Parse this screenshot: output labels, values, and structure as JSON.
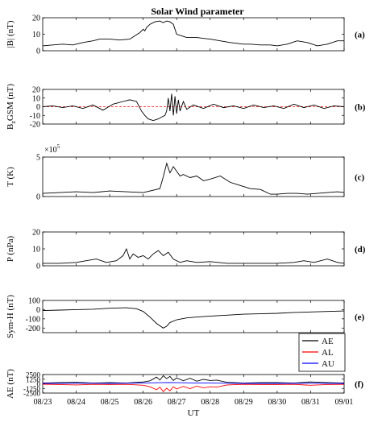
{
  "figure": {
    "title": "Solar Wind parameter"
  },
  "chart_data": [
    {
      "id": "a",
      "type": "line",
      "panel_label": "(a)",
      "ylabel": "|B| (nT)",
      "ylim": [
        0,
        20
      ],
      "yticks": [
        0,
        10,
        20
      ],
      "series": [
        {
          "color": "#000000",
          "x": [
            0,
            0.3,
            0.6,
            0.9,
            1.2,
            1.5,
            1.7,
            2.0,
            2.3,
            2.6,
            2.75,
            2.9,
            3.0,
            3.05,
            3.1,
            3.2,
            3.35,
            3.5,
            3.6,
            3.7,
            3.8,
            3.9,
            4.0,
            4.3,
            4.6,
            5.0,
            5.3,
            5.6,
            5.8,
            6.0,
            6.2,
            6.5,
            6.8,
            7.0,
            7.3,
            7.6,
            7.9,
            8.2,
            8.5,
            8.8,
            9.0
          ],
          "y": [
            3,
            3.5,
            4,
            3.5,
            5,
            6,
            7,
            7,
            6.5,
            7,
            9,
            11,
            13,
            12,
            14,
            16,
            17.5,
            18,
            17,
            18,
            17.5,
            16,
            10,
            8,
            8,
            7,
            6,
            5,
            4.5,
            4,
            4,
            3.5,
            3.5,
            3,
            4,
            6,
            5,
            3,
            4,
            6,
            6
          ]
        }
      ]
    },
    {
      "id": "b",
      "type": "line",
      "panel_label": "(b)",
      "ylabel": "Bz GSM (nT)",
      "ylim": [
        -20,
        20
      ],
      "yticks": [
        -20,
        -10,
        0,
        10,
        20
      ],
      "hline": 0,
      "series": [
        {
          "color": "#000000",
          "x": [
            0,
            0.3,
            0.6,
            0.9,
            1.2,
            1.5,
            1.8,
            2.1,
            2.4,
            2.6,
            2.8,
            2.95,
            3.05,
            3.15,
            3.3,
            3.45,
            3.55,
            3.65,
            3.7,
            3.75,
            3.8,
            3.85,
            3.9,
            3.95,
            4.0,
            4.05,
            4.1,
            4.2,
            4.3,
            4.5,
            4.8,
            5.1,
            5.4,
            5.7,
            6.0,
            6.3,
            6.6,
            6.9,
            7.2,
            7.5,
            7.8,
            8.1,
            8.4,
            8.7,
            9.0
          ],
          "y": [
            0,
            1,
            -1,
            1,
            -2,
            2,
            -4,
            3,
            6,
            8,
            6,
            -5,
            -10,
            -14,
            -16,
            -14,
            -12,
            -10,
            -5,
            10,
            -5,
            15,
            -10,
            12,
            -8,
            8,
            -5,
            6,
            -3,
            2,
            -2,
            3,
            -1,
            1,
            -2,
            2,
            -1,
            1,
            -2,
            3,
            -1,
            2,
            -2,
            1,
            0
          ]
        }
      ]
    },
    {
      "id": "c",
      "type": "line",
      "panel_label": "(c)",
      "ylabel": "T (K)",
      "ylim": [
        0,
        5
      ],
      "yticks": [
        0,
        5
      ],
      "multiplier": "×10",
      "multiplier_exp": "5",
      "series": [
        {
          "color": "#000000",
          "x": [
            0,
            0.5,
            1.0,
            1.5,
            2.0,
            2.5,
            3.0,
            3.5,
            3.6,
            3.7,
            3.8,
            3.9,
            4.0,
            4.1,
            4.2,
            4.4,
            4.6,
            4.8,
            5.0,
            5.3,
            5.6,
            5.9,
            6.2,
            6.5,
            6.8,
            7.0,
            7.3,
            7.6,
            7.9,
            8.2,
            8.5,
            8.8,
            9.0
          ],
          "y": [
            0.4,
            0.5,
            0.6,
            0.5,
            0.7,
            0.6,
            0.5,
            1.0,
            2.5,
            4.2,
            3.0,
            3.8,
            3.2,
            2.6,
            2.8,
            2.4,
            2.6,
            2.0,
            2.2,
            2.6,
            1.8,
            1.4,
            1.0,
            0.9,
            0.3,
            0.3,
            0.4,
            0.4,
            0.3,
            0.4,
            0.5,
            0.6,
            0.5
          ]
        }
      ]
    },
    {
      "id": "d",
      "type": "line",
      "panel_label": "(d)",
      "ylabel": "P (nPa)",
      "ylim": [
        0,
        20
      ],
      "yticks": [
        0,
        10,
        20
      ],
      "series": [
        {
          "color": "#000000",
          "x": [
            0,
            0.5,
            1.0,
            1.3,
            1.6,
            1.9,
            2.2,
            2.4,
            2.5,
            2.6,
            2.7,
            2.85,
            3.0,
            3.15,
            3.3,
            3.45,
            3.6,
            3.75,
            3.9,
            4.1,
            4.3,
            4.6,
            5.0,
            5.5,
            6.0,
            6.5,
            7.0,
            7.5,
            7.8,
            8.1,
            8.5,
            8.8,
            9.0
          ],
          "y": [
            1.5,
            1.5,
            2,
            3,
            4,
            2,
            3,
            6,
            10,
            4,
            7,
            5,
            6,
            4,
            7,
            9,
            6,
            8,
            4,
            2,
            3,
            2,
            2.5,
            1.5,
            1.5,
            1.5,
            1.5,
            2,
            3,
            2,
            4,
            2,
            1.5
          ]
        }
      ]
    },
    {
      "id": "e",
      "type": "line",
      "panel_label": "(e)",
      "ylabel": "Sym-H (nT)",
      "ylim": [
        -250,
        100
      ],
      "yticks": [
        -200,
        -100,
        0,
        100
      ],
      "series": [
        {
          "color": "#000000",
          "x": [
            0,
            0.5,
            1.0,
            1.5,
            2.0,
            2.5,
            2.8,
            3.0,
            3.2,
            3.4,
            3.6,
            3.7,
            3.8,
            4.0,
            4.3,
            4.6,
            5.0,
            5.5,
            6.0,
            6.5,
            7.0,
            7.5,
            8.0,
            8.5,
            9.0
          ],
          "y": [
            -10,
            -5,
            0,
            5,
            15,
            20,
            10,
            -20,
            -80,
            -150,
            -200,
            -180,
            -140,
            -110,
            -90,
            -80,
            -70,
            -60,
            -50,
            -45,
            -40,
            -30,
            -25,
            -20,
            -15
          ]
        }
      ]
    },
    {
      "id": "f",
      "type": "line",
      "panel_label": "(f)",
      "ylabel": "AE (nT)",
      "ylim": [
        -2500,
        2500
      ],
      "yticks": [
        -2500,
        -1250,
        0,
        1250,
        2500
      ],
      "series": [
        {
          "name": "AE",
          "color": "#000000",
          "x": [
            0,
            0.5,
            1.0,
            1.5,
            2.0,
            2.5,
            3.0,
            3.2,
            3.4,
            3.5,
            3.6,
            3.7,
            3.8,
            3.9,
            4.0,
            4.2,
            4.4,
            4.6,
            4.8,
            5.0,
            5.2,
            5.5,
            6.0,
            6.5,
            7.0,
            7.5,
            8.0,
            8.5,
            9.0
          ],
          "y": [
            200,
            300,
            400,
            200,
            300,
            200,
            500,
            800,
            1800,
            1000,
            2200,
            1400,
            2000,
            900,
            1600,
            800,
            1500,
            700,
            1200,
            900,
            1000,
            400,
            200,
            300,
            300,
            200,
            500,
            300,
            200
          ]
        },
        {
          "name": "AL",
          "color": "#ff0000",
          "x": [
            0,
            0.5,
            1.0,
            1.5,
            2.0,
            2.5,
            3.0,
            3.2,
            3.4,
            3.5,
            3.6,
            3.7,
            3.8,
            3.9,
            4.0,
            4.2,
            4.4,
            4.6,
            4.8,
            5.0,
            5.2,
            5.5,
            6.0,
            6.5,
            7.0,
            7.5,
            8.0,
            8.5,
            9.0
          ],
          "y": [
            -100,
            -200,
            -300,
            -150,
            -200,
            -150,
            -400,
            -800,
            -1600,
            -900,
            -2100,
            -1200,
            -1900,
            -800,
            -1400,
            -700,
            -1300,
            -600,
            -1100,
            -800,
            -900,
            -300,
            -150,
            -200,
            -200,
            -150,
            -400,
            -200,
            -150
          ]
        },
        {
          "name": "AU",
          "color": "#0000ff",
          "x": [
            0,
            1.0,
            2.0,
            3.0,
            3.5,
            3.8,
            4.0,
            4.5,
            5.0,
            5.5,
            6.0,
            7.0,
            8.0,
            9.0
          ],
          "y": [
            100,
            150,
            100,
            200,
            300,
            350,
            300,
            250,
            200,
            150,
            100,
            100,
            150,
            100
          ]
        }
      ]
    }
  ],
  "x_axis": {
    "label": "UT",
    "ticks": [
      "08/23",
      "08/24",
      "08/25",
      "08/26",
      "08/27",
      "08/28",
      "08/29",
      "08/30",
      "08/31",
      "09/01"
    ]
  }
}
